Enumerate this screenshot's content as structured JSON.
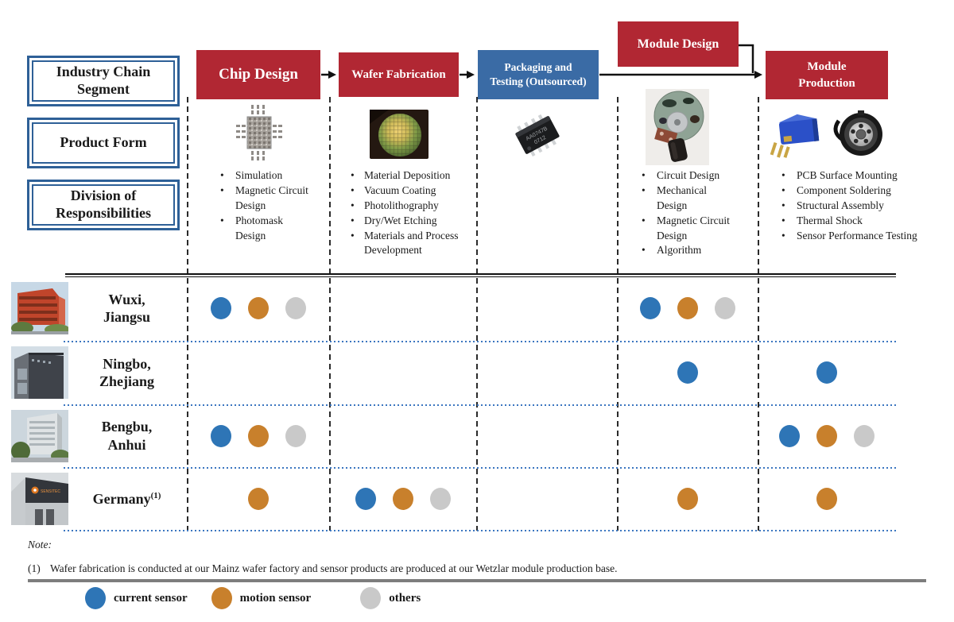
{
  "left_labels": [
    "Industry Chain Segment",
    "Product Form",
    "Division of Responsibilities"
  ],
  "stages": [
    {
      "label": "Chip Design",
      "color": "#b12733",
      "responsibilities": [
        "Simulation",
        "Magnetic Circuit Design",
        "Photomask Design"
      ]
    },
    {
      "label": "Wafer Fabrication",
      "color": "#b12733",
      "responsibilities": [
        "Material Deposition",
        "Vacuum Coating",
        "Photolithography",
        "Dry/Wet Etching",
        "Materials and Process Development"
      ]
    },
    {
      "label": "Packaging and Testing (Outsourced)",
      "color": "#3a6ba5",
      "responsibilities": []
    },
    {
      "label": "Module Design",
      "color": "#b12733",
      "responsibilities": [
        "Circuit Design",
        "Mechanical Design",
        "Magnetic Circuit Design",
        "Algorithm"
      ]
    },
    {
      "label": "Module Production",
      "color": "#b12733",
      "responsibilities": [
        "PCB Surface Mounting",
        "Component Soldering",
        "Structural Assembly",
        "Thermal Shock",
        "Sensor Performance Testing"
      ]
    }
  ],
  "ic_marking": [
    "AA0747B",
    "0712"
  ],
  "germany_logo_text": "SENSITEC",
  "sites": [
    {
      "name": "Wuxi, Jiangsu",
      "note_ref": "",
      "dots": [
        [
          "current",
          "motion",
          "others"
        ],
        [],
        [],
        [
          "current",
          "motion",
          "others"
        ],
        []
      ]
    },
    {
      "name": "Ningbo, Zhejiang",
      "note_ref": "",
      "dots": [
        [],
        [],
        [],
        [
          "current"
        ],
        [
          "current"
        ]
      ]
    },
    {
      "name": "Bengbu, Anhui",
      "note_ref": "",
      "dots": [
        [
          "current",
          "motion",
          "others"
        ],
        [],
        [],
        [],
        [
          "current",
          "motion",
          "others"
        ]
      ]
    },
    {
      "name": "Germany",
      "note_ref": "(1)",
      "dots": [
        [
          "motion"
        ],
        [
          "current",
          "motion",
          "others"
        ],
        [],
        [
          "motion"
        ],
        [
          "motion"
        ]
      ]
    }
  ],
  "legend": [
    {
      "type": "current",
      "label": "current sensor"
    },
    {
      "type": "motion",
      "label": "motion sensor"
    },
    {
      "type": "others",
      "label": "others"
    }
  ],
  "note": {
    "heading": "Note:",
    "items": [
      {
        "ref": "(1)",
        "text": "Wafer fabrication is conducted at our Mainz wafer factory and sensor products are produced at our Wetzlar module production base."
      }
    ]
  },
  "colors": {
    "stage_red": "#b12733",
    "stage_blue": "#3a6ba5",
    "box_border_blue": "#2e6097",
    "dot_current": "#2e75b6",
    "dot_motion": "#c8802c",
    "dot_others": "#c9c9c9",
    "row_divider_blue": "#3b76c0"
  }
}
